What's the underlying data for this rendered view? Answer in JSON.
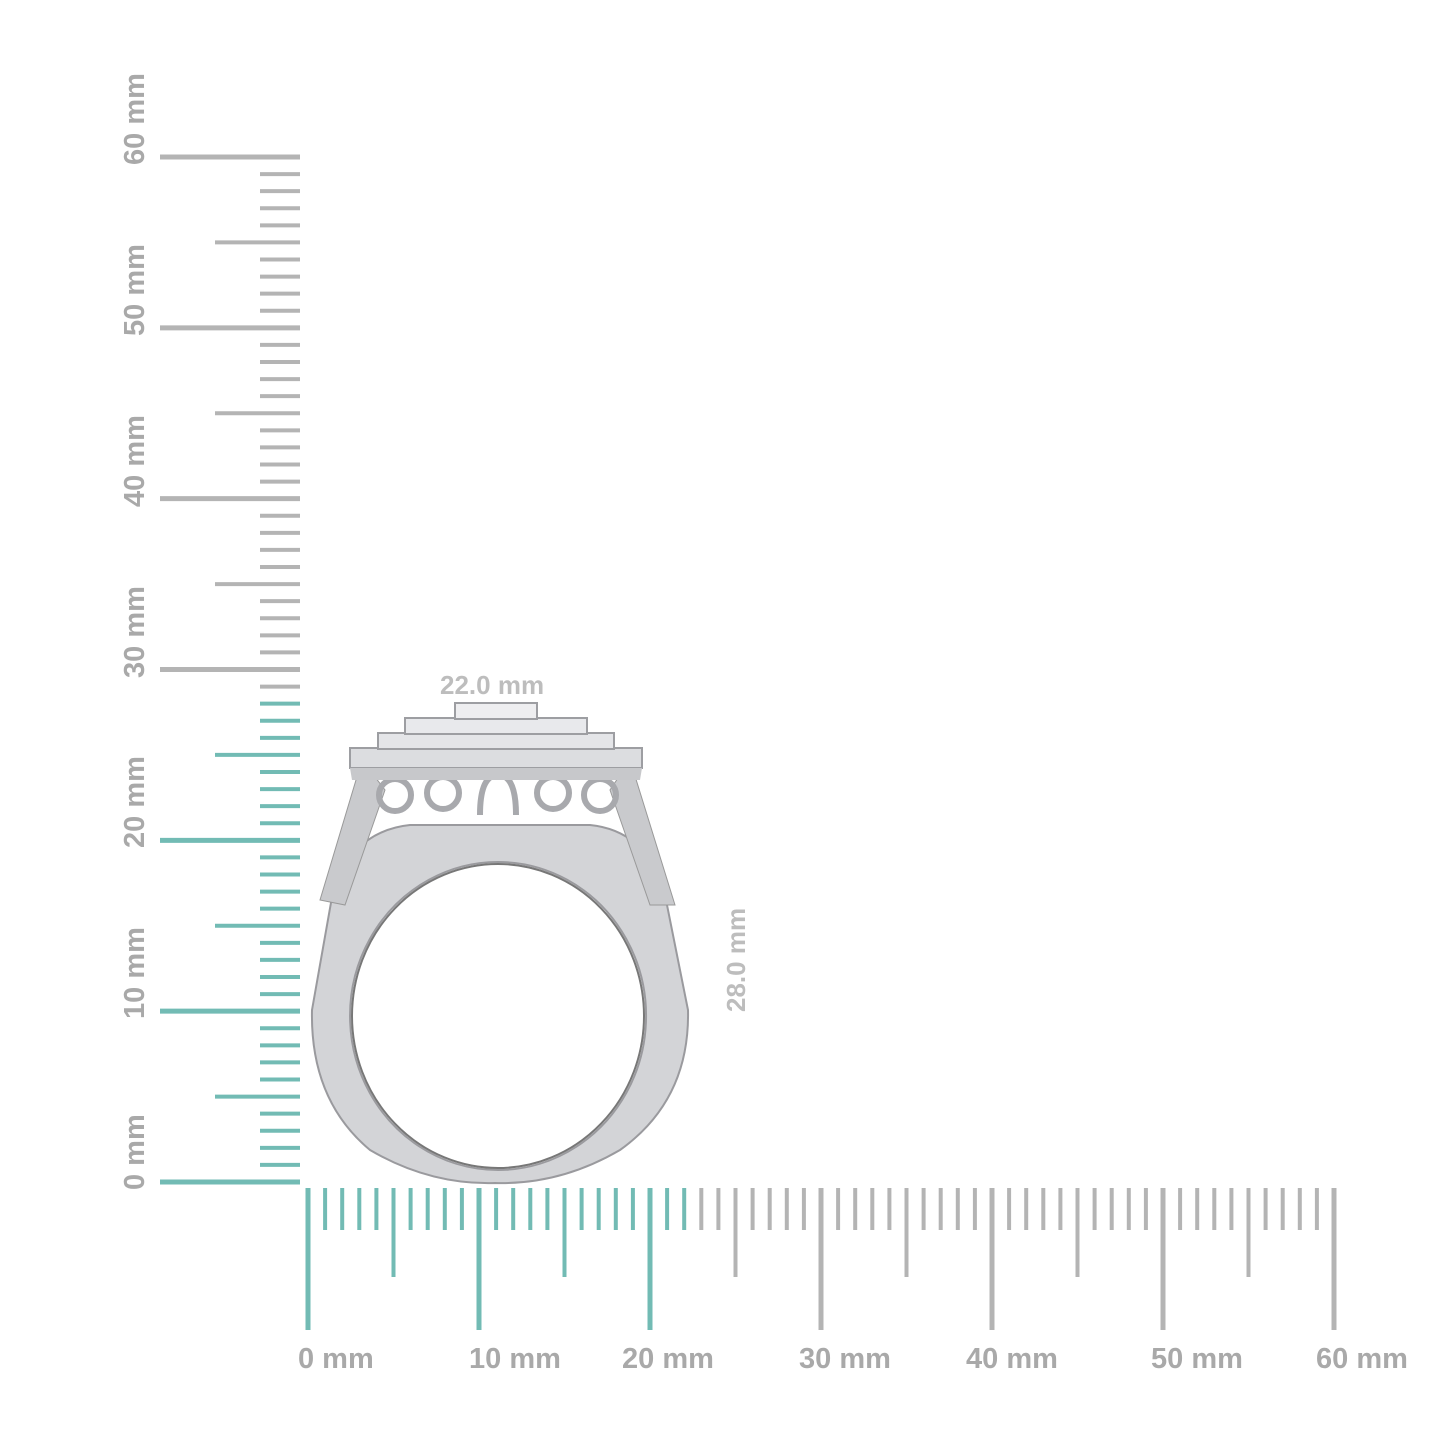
{
  "dimensions": {
    "width_label": "22.0 mm",
    "height_label": "28.0 mm",
    "width_mm": 22,
    "height_mm": 28
  },
  "horizontal_ruler": {
    "labels": [
      "0 mm",
      "10 mm",
      "20 mm",
      "30 mm",
      "40 mm",
      "50 mm",
      "60 mm"
    ],
    "max_mm": 60,
    "highlight_mm": 22
  },
  "vertical_ruler": {
    "labels": [
      "0 mm",
      "10 mm",
      "20 mm",
      "30 mm",
      "40 mm",
      "50 mm",
      "60 mm"
    ],
    "max_mm": 60,
    "highlight_mm": 28
  },
  "colors": {
    "highlight": "#72bbb4",
    "tick": "#b4b4b4",
    "label": "#a9a9a9",
    "metal": "#d2d3d6"
  }
}
